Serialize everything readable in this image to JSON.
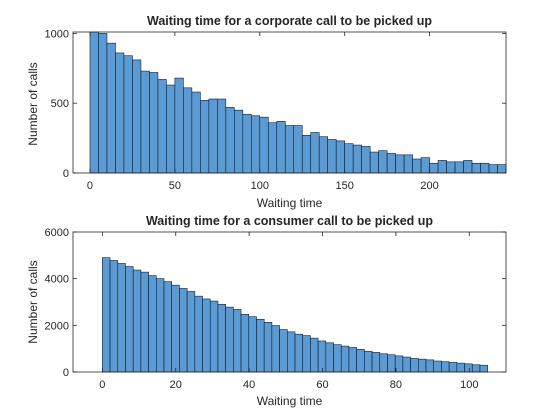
{
  "chart_data": [
    {
      "type": "bar",
      "title": "Waiting time for a corporate call to be picked up",
      "xlabel": "Waiting time",
      "ylabel": "Number of calls",
      "xlim": [
        -10,
        245
      ],
      "ylim": [
        0,
        1010
      ],
      "xticks": [
        0,
        50,
        100,
        150,
        200
      ],
      "yticks": [
        0,
        500,
        1000
      ],
      "bin_start": 0,
      "bin_width": 5,
      "values": [
        1020,
        1000,
        930,
        860,
        840,
        810,
        730,
        720,
        670,
        630,
        680,
        610,
        580,
        520,
        530,
        530,
        470,
        450,
        420,
        410,
        400,
        360,
        370,
        340,
        340,
        270,
        290,
        260,
        240,
        230,
        210,
        200,
        190,
        150,
        160,
        140,
        130,
        130,
        100,
        110,
        70,
        90,
        80,
        80,
        90,
        70,
        70,
        60,
        60
      ],
      "bar_color": "#5b9bd5",
      "grid": false
    },
    {
      "type": "bar",
      "title": "Waiting time for a consumer call to be picked up",
      "xlabel": "Waiting time",
      "ylabel": "Number of calls",
      "xlim": [
        -8,
        110
      ],
      "ylim": [
        0,
        6000
      ],
      "xticks": [
        0,
        20,
        40,
        60,
        80,
        100
      ],
      "yticks": [
        0,
        2000,
        4000,
        6000
      ],
      "bin_start": 0,
      "bin_width": 2.1,
      "values": [
        4900,
        4780,
        4650,
        4520,
        4370,
        4280,
        4130,
        4000,
        3870,
        3720,
        3580,
        3450,
        3250,
        3130,
        3040,
        2900,
        2780,
        2680,
        2470,
        2370,
        2260,
        2130,
        1990,
        1820,
        1720,
        1620,
        1560,
        1450,
        1330,
        1250,
        1170,
        1110,
        1050,
        970,
        890,
        840,
        780,
        740,
        690,
        640,
        580,
        550,
        520,
        470,
        440,
        410,
        380,
        350,
        310,
        290
      ],
      "bar_color": "#5b9bd5",
      "grid": false
    }
  ]
}
